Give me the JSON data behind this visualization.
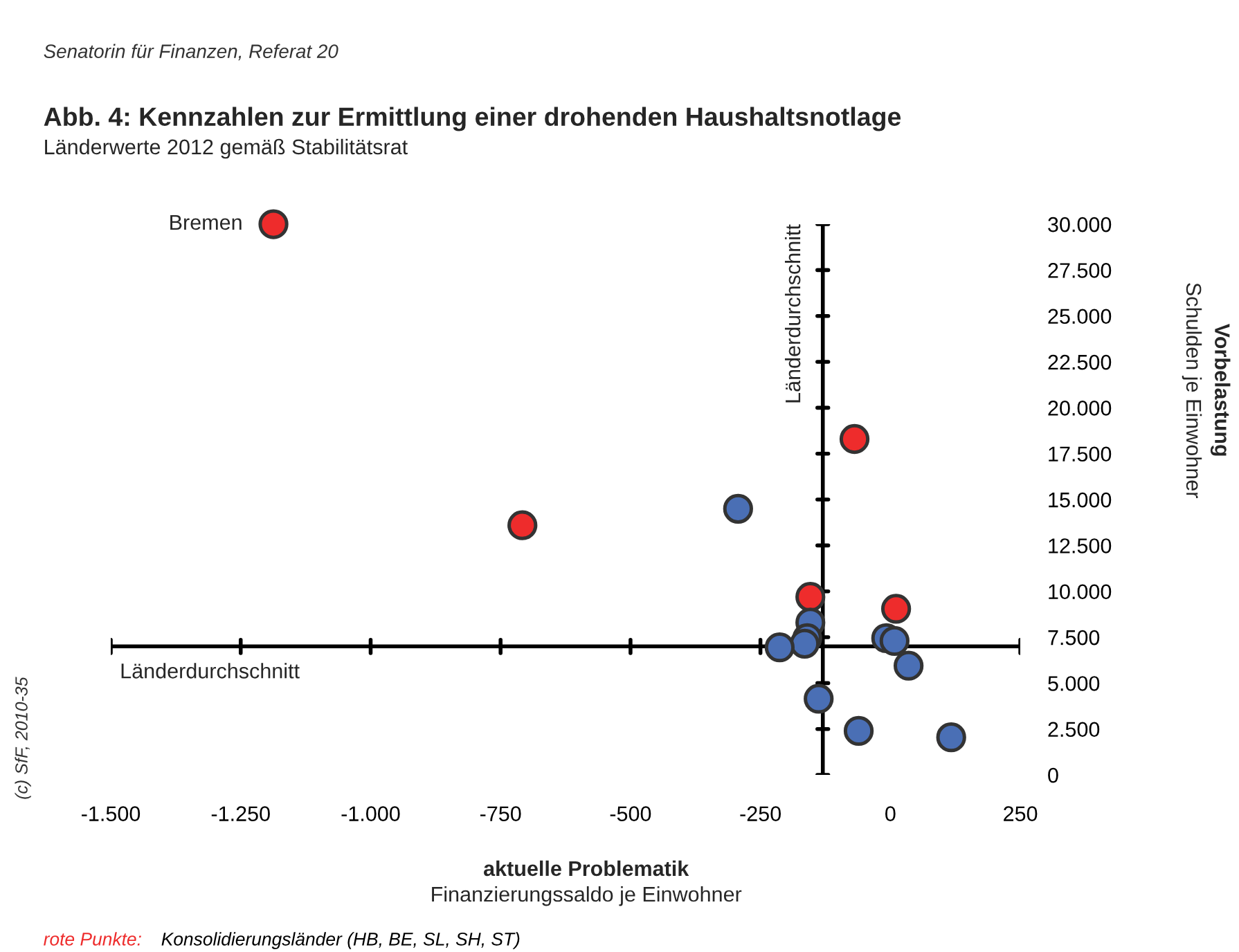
{
  "chart_data": {
    "type": "scatter",
    "title": "Abb. 4: Kennzahlen zur Ermittlung einer drohenden Haushaltsnotlage",
    "subtitle": "Länderwerte 2012 gemäß Stabilitätsrat",
    "xlabel": "aktuelle Problematik\nFinanzierungssaldo je Einwohner",
    "ylabel": "Vorbelastung\nSchulden je Einwohner",
    "marker": "circle",
    "series": [
      {
        "color": "#ee2c2c",
        "x": [
          -1187,
          -69,
          -708,
          -154,
          11
        ],
        "values": [
          30000,
          18300,
          13600,
          9700,
          9050
        ]
      },
      {
        "color": "#4a6fb5",
        "x": [
          -293,
          -154,
          -160,
          -165,
          -213,
          -8,
          8,
          35,
          -138,
          -61,
          117
        ],
        "values": [
          14500,
          8300,
          7450,
          7150,
          6950,
          7450,
          7300,
          5950,
          4150,
          2400,
          2050
        ]
      }
    ],
    "xlim": [
      -1500,
      250
    ],
    "xticks": [
      {
        "value": -1500,
        "label": "-1.500"
      },
      {
        "value": -1250,
        "label": "-1.250"
      },
      {
        "value": -1000,
        "label": "-1.000"
      },
      {
        "value": -750,
        "label": "-750"
      },
      {
        "value": -500,
        "label": "-500"
      },
      {
        "value": -250,
        "label": "-250"
      },
      0,
      250
    ],
    "ylim": [
      0,
      30000
    ],
    "yticks": [
      0,
      {
        "value": 2500,
        "label": "2.500"
      },
      {
        "value": 5000,
        "label": "5.000"
      },
      {
        "value": 7500,
        "label": "7.500"
      },
      {
        "value": 10000,
        "label": "10.000"
      },
      {
        "value": 12500,
        "label": "12.500"
      },
      {
        "value": 15000,
        "label": "15.000"
      },
      {
        "value": 17500,
        "label": "17.500"
      },
      {
        "value": 20000,
        "label": "20.000"
      },
      {
        "value": 22500,
        "label": "22.500"
      },
      {
        "value": 25000,
        "label": "25.000"
      },
      {
        "value": 27500,
        "label": "27.500"
      },
      {
        "value": 30000,
        "label": "30.000"
      }
    ],
    "ref_lines": [
      {
        "axis": "x",
        "value": -130,
        "label": "Länderdurchschnitt"
      },
      {
        "axis": "y",
        "value": 7000,
        "label": "Länderdurchschnitt"
      }
    ],
    "grid": false,
    "legend": false,
    "annotations": [
      {
        "text": "Bremen",
        "x": -1187,
        "y": 30000
      },
      "Senatorin für Finanzen, Referat 20",
      "(c) SfF, 2010-35",
      "rote Punkte:",
      "Konsolidierungsländer (HB, BE, SL, SH, ST)"
    ]
  }
}
